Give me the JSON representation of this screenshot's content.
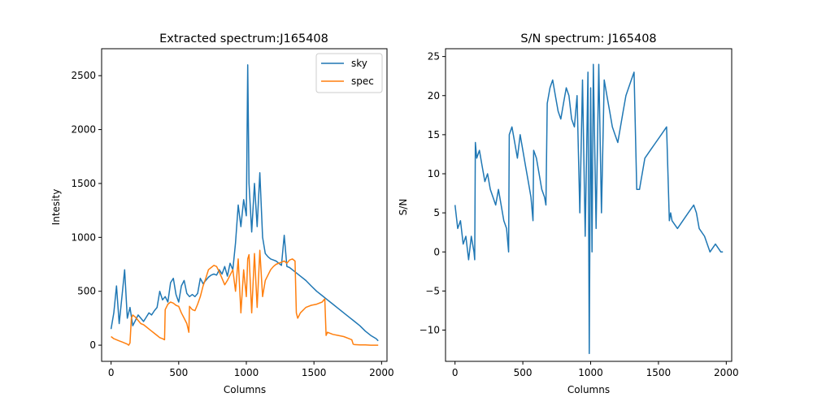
{
  "chart_data": [
    {
      "type": "line",
      "title": "Extracted spectrum:J165408",
      "xlabel": "Columns",
      "ylabel": "Intesity",
      "xlim": [
        -70,
        2040
      ],
      "ylim": [
        -150,
        2750
      ],
      "xticks": [
        0,
        500,
        1000,
        1500,
        2000
      ],
      "yticks": [
        0,
        500,
        1000,
        1500,
        2000,
        2500
      ],
      "legend": "top-right",
      "series": [
        {
          "name": "sky",
          "color": "#1f77b4",
          "x": [
            0,
            20,
            40,
            60,
            80,
            100,
            120,
            140,
            160,
            180,
            200,
            220,
            240,
            260,
            280,
            300,
            320,
            340,
            360,
            380,
            400,
            420,
            440,
            460,
            480,
            500,
            520,
            540,
            560,
            580,
            600,
            620,
            640,
            660,
            680,
            700,
            720,
            740,
            760,
            780,
            800,
            820,
            840,
            860,
            880,
            900,
            920,
            940,
            960,
            980,
            1000,
            1010,
            1020,
            1040,
            1060,
            1080,
            1100,
            1120,
            1140,
            1160,
            1180,
            1200,
            1220,
            1240,
            1260,
            1280,
            1300,
            1320,
            1340,
            1360,
            1400,
            1440,
            1480,
            1520,
            1560,
            1600,
            1640,
            1680,
            1720,
            1760,
            1800,
            1840,
            1880,
            1920,
            1960,
            1975
          ],
          "values": [
            150,
            300,
            550,
            200,
            450,
            700,
            250,
            350,
            180,
            230,
            280,
            250,
            220,
            260,
            300,
            280,
            320,
            350,
            500,
            420,
            450,
            400,
            580,
            620,
            470,
            400,
            550,
            600,
            480,
            450,
            470,
            450,
            480,
            620,
            570,
            600,
            630,
            650,
            660,
            650,
            700,
            660,
            730,
            640,
            760,
            700,
            950,
            1300,
            1100,
            1350,
            1200,
            2600,
            1500,
            1050,
            1500,
            1100,
            1600,
            1000,
            850,
            820,
            800,
            790,
            780,
            760,
            740,
            1020,
            730,
            720,
            700,
            680,
            640,
            600,
            550,
            500,
            460,
            420,
            380,
            340,
            300,
            260,
            220,
            180,
            130,
            90,
            60,
            40
          ]
        },
        {
          "name": "spec",
          "color": "#ff7f0e",
          "x": [
            0,
            20,
            40,
            60,
            80,
            100,
            120,
            130,
            140,
            150,
            160,
            180,
            200,
            220,
            240,
            260,
            280,
            300,
            320,
            340,
            360,
            380,
            395,
            400,
            420,
            440,
            460,
            480,
            500,
            520,
            540,
            560,
            575,
            580,
            600,
            620,
            640,
            660,
            680,
            700,
            720,
            740,
            760,
            780,
            800,
            820,
            840,
            860,
            880,
            900,
            920,
            940,
            960,
            980,
            1000,
            1010,
            1020,
            1040,
            1060,
            1080,
            1100,
            1120,
            1140,
            1160,
            1180,
            1200,
            1220,
            1240,
            1260,
            1280,
            1300,
            1320,
            1340,
            1360,
            1370,
            1380,
            1400,
            1440,
            1480,
            1520,
            1560,
            1580,
            1590,
            1600,
            1640,
            1680,
            1720,
            1760,
            1780,
            1790,
            1800,
            1840,
            1880,
            1920,
            1960,
            1975
          ],
          "values": [
            80,
            60,
            50,
            40,
            30,
            20,
            10,
            0,
            20,
            250,
            280,
            260,
            230,
            200,
            190,
            170,
            150,
            130,
            110,
            90,
            70,
            60,
            50,
            330,
            380,
            400,
            390,
            370,
            360,
            300,
            250,
            200,
            120,
            360,
            330,
            320,
            380,
            450,
            550,
            620,
            700,
            720,
            740,
            730,
            680,
            620,
            560,
            600,
            650,
            700,
            500,
            800,
            300,
            700,
            450,
            800,
            840,
            300,
            850,
            350,
            880,
            450,
            600,
            650,
            700,
            730,
            750,
            760,
            770,
            780,
            760,
            790,
            800,
            780,
            300,
            250,
            300,
            350,
            370,
            380,
            400,
            430,
            90,
            120,
            100,
            90,
            80,
            60,
            50,
            10,
            5,
            3,
            2,
            0,
            0,
            0
          ]
        }
      ]
    },
    {
      "type": "line",
      "title": "S/N spectrum: J165408",
      "xlabel": "Columns",
      "ylabel": "S/N",
      "xlim": [
        -70,
        2040
      ],
      "ylim": [
        -14,
        26
      ],
      "xticks": [
        0,
        500,
        1000,
        1500,
        2000
      ],
      "yticks": [
        -10,
        -5,
        0,
        5,
        10,
        15,
        20,
        25
      ],
      "series": [
        {
          "name": "",
          "color": "#1f77b4",
          "x": [
            0,
            20,
            40,
            60,
            80,
            100,
            120,
            140,
            145,
            150,
            160,
            180,
            200,
            220,
            240,
            260,
            280,
            300,
            320,
            340,
            360,
            380,
            395,
            400,
            420,
            440,
            460,
            480,
            500,
            520,
            540,
            560,
            575,
            580,
            600,
            620,
            640,
            660,
            670,
            680,
            700,
            720,
            740,
            760,
            780,
            800,
            820,
            840,
            860,
            880,
            900,
            920,
            940,
            960,
            980,
            990,
            1000,
            1010,
            1020,
            1040,
            1060,
            1080,
            1100,
            1120,
            1140,
            1160,
            1180,
            1200,
            1220,
            1240,
            1260,
            1280,
            1300,
            1320,
            1340,
            1360,
            1370,
            1380,
            1400,
            1440,
            1480,
            1520,
            1560,
            1580,
            1590,
            1600,
            1640,
            1680,
            1720,
            1760,
            1780,
            1800,
            1840,
            1880,
            1920,
            1960,
            1975
          ],
          "values": [
            6,
            3,
            4,
            1,
            2,
            -1,
            2,
            0,
            -1,
            14,
            12,
            13,
            11,
            9,
            10,
            8,
            7,
            6,
            8,
            6,
            4,
            3,
            0,
            15,
            16,
            14,
            12,
            15,
            13,
            11,
            9,
            7,
            4,
            13,
            12,
            10,
            8,
            7,
            6,
            19,
            21,
            22,
            20,
            18,
            17,
            19,
            21,
            20,
            17,
            16,
            20,
            5,
            22,
            2,
            23,
            -13,
            21,
            0,
            24,
            3,
            24,
            5,
            22,
            20,
            18,
            16,
            15,
            14,
            16,
            18,
            20,
            21,
            22,
            23,
            8,
            8,
            9,
            10,
            12,
            13,
            14,
            15,
            16,
            4,
            5,
            4,
            3,
            4,
            5,
            6,
            5,
            3,
            2,
            0,
            1,
            0,
            0
          ]
        }
      ]
    }
  ]
}
